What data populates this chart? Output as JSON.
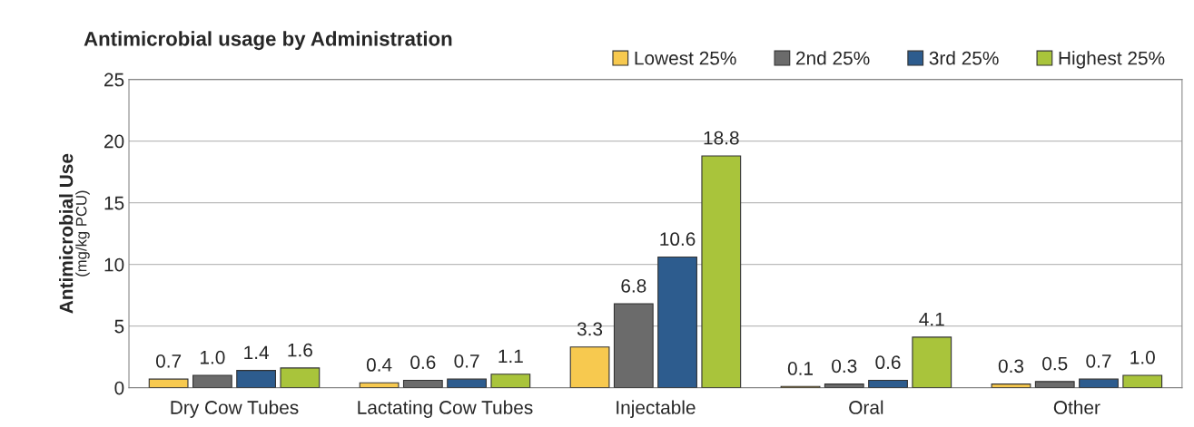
{
  "chart_data": {
    "type": "bar",
    "title": "Antimicrobial usage by Administration",
    "ylabel": "Antimicrobial Use\n(mg/kg PCU)",
    "categories": [
      "Dry Cow Tubes",
      "Lactating Cow Tubes",
      "Injectable",
      "Oral",
      "Other"
    ],
    "series": [
      {
        "name": "Lowest 25%",
        "color": "#f7c94f",
        "values": [
          0.7,
          0.4,
          3.3,
          0.1,
          0.3
        ],
        "value_labels": [
          "0.7",
          "0.4",
          "3.3",
          "0.1",
          "0.3"
        ]
      },
      {
        "name": "2nd 25%",
        "color": "#6b6b6b",
        "values": [
          1.0,
          0.6,
          6.8,
          0.3,
          0.5
        ],
        "value_labels": [
          "1.0",
          "0.6",
          "6.8",
          "0.3",
          "0.5"
        ]
      },
      {
        "name": "3rd 25%",
        "color": "#2d5c8e",
        "values": [
          1.4,
          0.7,
          10.6,
          0.6,
          0.7
        ],
        "value_labels": [
          "1.4",
          "0.7",
          "10.6",
          "0.6",
          "0.7"
        ]
      },
      {
        "name": "Highest 25%",
        "color": "#a9c43b",
        "values": [
          1.6,
          1.1,
          18.8,
          4.1,
          1.0
        ],
        "value_labels": [
          "1.6",
          "1.1",
          "18.8",
          "4.1",
          "1.0"
        ]
      }
    ],
    "ylim": [
      0,
      25
    ],
    "yticks": [
      0,
      5,
      10,
      15,
      20,
      25
    ],
    "grid": "y",
    "legend": "top right"
  }
}
